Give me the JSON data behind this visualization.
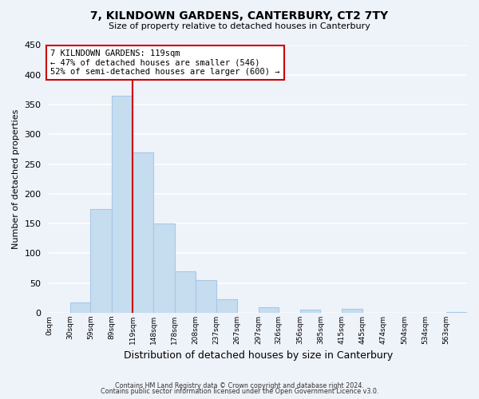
{
  "title": "7, KILNDOWN GARDENS, CANTERBURY, CT2 7TY",
  "subtitle": "Size of property relative to detached houses in Canterbury",
  "xlabel": "Distribution of detached houses by size in Canterbury",
  "ylabel": "Number of detached properties",
  "bar_color": "#c5ddef",
  "bar_edge_color": "#a8c8e8",
  "background_color": "#eef2f9",
  "grid_color": "white",
  "marker_line_color": "#cc0000",
  "marker_value": 119,
  "annotation_title": "7 KILNDOWN GARDENS: 119sqm",
  "annotation_line1": "← 47% of detached houses are smaller (546)",
  "annotation_line2": "52% of semi-detached houses are larger (600) →",
  "bin_edges": [
    0,
    30,
    59,
    89,
    119,
    148,
    178,
    208,
    237,
    267,
    297,
    326,
    356,
    385,
    415,
    445,
    474,
    504,
    534,
    563,
    593
  ],
  "counts": [
    0,
    18,
    175,
    365,
    270,
    150,
    70,
    55,
    23,
    0,
    9,
    0,
    6,
    0,
    7,
    0,
    0,
    0,
    0,
    1
  ],
  "ylim": [
    0,
    450
  ],
  "yticks": [
    0,
    50,
    100,
    150,
    200,
    250,
    300,
    350,
    400,
    450
  ],
  "footer_line1": "Contains HM Land Registry data © Crown copyright and database right 2024.",
  "footer_line2": "Contains public sector information licensed under the Open Government Licence v3.0."
}
